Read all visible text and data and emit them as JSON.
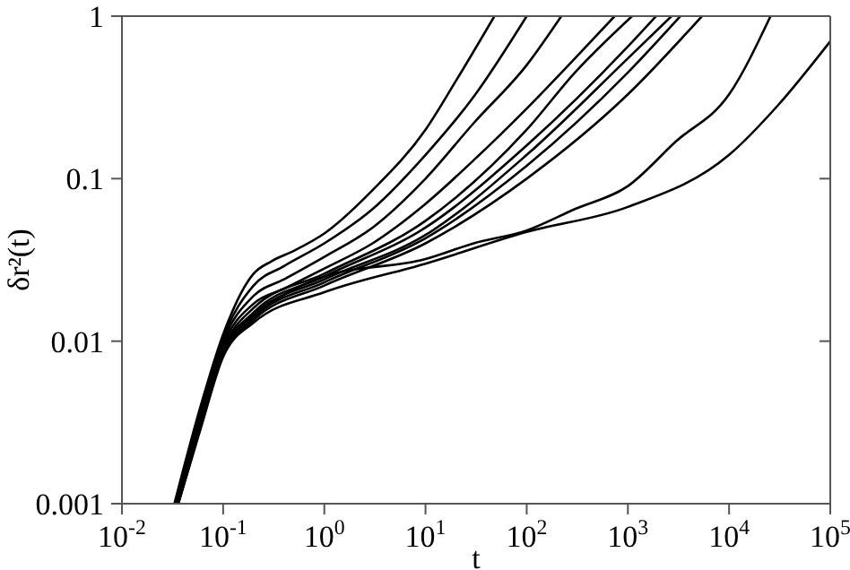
{
  "chart_data": {
    "type": "line",
    "xlabel": "t",
    "ylabel": "δr²(t)",
    "log": "xy",
    "marker": "none",
    "line_style": "solid",
    "xlim": [
      0.01,
      100000
    ],
    "ylim": [
      0.001,
      1
    ],
    "xticks": [
      {
        "value": 0.01,
        "label": "10$^{-2}$"
      },
      {
        "value": 0.1,
        "label": "10$^{-1}$"
      },
      {
        "value": 1,
        "label": "10$^{0}$"
      },
      {
        "value": 10,
        "label": "10$^{1}$"
      },
      {
        "value": 100,
        "label": "10$^{2}$"
      },
      {
        "value": 1000,
        "label": "10$^{3}$"
      },
      {
        "value": 10000,
        "label": "10$^{4}$"
      },
      {
        "value": 100000,
        "label": "10$^{5}$"
      }
    ],
    "yticks": [
      0.001,
      0.01,
      0.1,
      1
    ],
    "series": [
      {
        "color": "#000000",
        "x": [
          0.033,
          0.06,
          0.1,
          0.2,
          0.3,
          0.5,
          1,
          3,
          10,
          20,
          48
        ],
        "values": [
          0.001,
          0.004,
          0.011,
          0.026,
          0.031,
          0.036,
          0.046,
          0.085,
          0.2,
          0.4,
          1
        ]
      },
      {
        "color": "#000000",
        "x": [
          0.034,
          0.06,
          0.1,
          0.2,
          0.4,
          1,
          3,
          10,
          30,
          100
        ],
        "values": [
          0.001,
          0.0037,
          0.0105,
          0.022,
          0.029,
          0.04,
          0.065,
          0.14,
          0.32,
          1
        ]
      },
      {
        "color": "#000000",
        "x": [
          0.034,
          0.06,
          0.1,
          0.2,
          0.4,
          1,
          3,
          10,
          30,
          100,
          220
        ],
        "values": [
          0.001,
          0.0035,
          0.01,
          0.019,
          0.024,
          0.033,
          0.05,
          0.1,
          0.22,
          0.5,
          1
        ]
      },
      {
        "color": "#000000",
        "x": [
          0.034,
          0.06,
          0.1,
          0.2,
          0.4,
          1,
          3,
          10,
          30,
          100,
          300,
          740
        ],
        "values": [
          0.001,
          0.0034,
          0.0095,
          0.017,
          0.021,
          0.028,
          0.04,
          0.07,
          0.13,
          0.27,
          0.55,
          1
        ]
      },
      {
        "color": "#000000",
        "x": [
          0.035,
          0.06,
          0.1,
          0.2,
          1,
          10,
          100,
          300,
          1100
        ],
        "values": [
          0.001,
          0.0033,
          0.009,
          0.016,
          0.026,
          0.055,
          0.2,
          0.45,
          1
        ]
      },
      {
        "color": "#000000",
        "x": [
          0.035,
          0.06,
          0.1,
          0.2,
          1,
          10,
          100,
          1000,
          1900
        ],
        "values": [
          0.001,
          0.0032,
          0.0088,
          0.015,
          0.025,
          0.05,
          0.16,
          0.65,
          1
        ]
      },
      {
        "color": "#000000",
        "x": [
          0.035,
          0.06,
          0.1,
          0.2,
          1,
          10,
          100,
          1000,
          2700
        ],
        "values": [
          0.001,
          0.0031,
          0.0086,
          0.0145,
          0.024,
          0.045,
          0.14,
          0.55,
          1
        ]
      },
      {
        "color": "#000000",
        "x": [
          0.036,
          0.06,
          0.1,
          0.2,
          1,
          10,
          100,
          1000,
          3300
        ],
        "values": [
          0.001,
          0.003,
          0.0084,
          0.014,
          0.023,
          0.043,
          0.12,
          0.45,
          1
        ]
      },
      {
        "color": "#000000",
        "x": [
          0.036,
          0.06,
          0.1,
          0.2,
          1,
          10,
          100,
          1000,
          5400
        ],
        "values": [
          0.001,
          0.003,
          0.0082,
          0.0135,
          0.022,
          0.04,
          0.1,
          0.33,
          1
        ]
      },
      {
        "color": "#000000",
        "x": [
          0.034,
          0.06,
          0.1,
          0.2,
          1,
          10,
          30,
          100,
          300,
          1000,
          3000,
          10000,
          25700
        ],
        "values": [
          0.001,
          0.0032,
          0.0088,
          0.014,
          0.025,
          0.032,
          0.04,
          0.048,
          0.065,
          0.09,
          0.17,
          0.33,
          1
        ]
      },
      {
        "color": "#000000",
        "x": [
          0.036,
          0.06,
          0.1,
          0.2,
          1,
          10,
          100,
          1000,
          10000,
          30000,
          100000
        ],
        "values": [
          0.001,
          0.0029,
          0.008,
          0.013,
          0.02,
          0.03,
          0.047,
          0.067,
          0.14,
          0.28,
          0.7
        ]
      }
    ]
  }
}
